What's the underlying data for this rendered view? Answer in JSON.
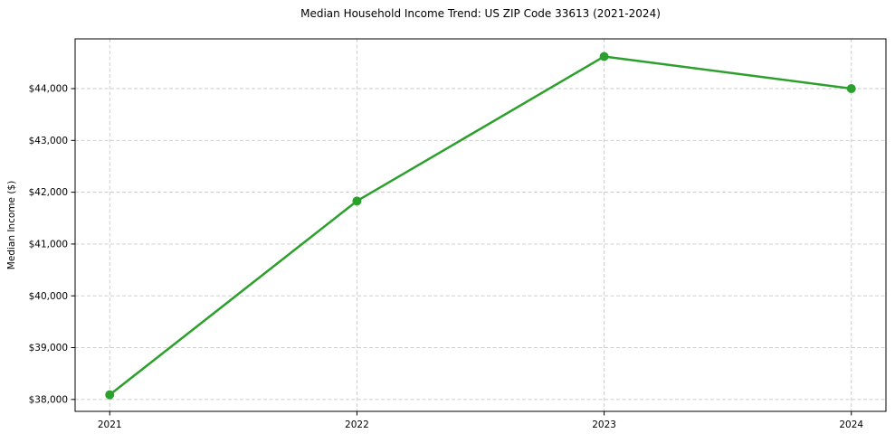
{
  "title": "Median Household Income Trend: US ZIP Code 33613 (2021-2024)",
  "chart_data": {
    "type": "line",
    "title": "Median Household Income Trend: US ZIP Code 33613 (2021-2024)",
    "xlabel": "",
    "ylabel": "Median Income ($)",
    "x": [
      2021,
      2022,
      2023,
      2024
    ],
    "series": [
      {
        "name": "Median Income",
        "color": "#2ca02c",
        "values": [
          38090,
          41830,
          44620,
          44000
        ]
      }
    ],
    "xticks": [
      2021,
      2022,
      2023,
      2024
    ],
    "xtick_labels": [
      "2021",
      "2022",
      "2023",
      "2024"
    ],
    "yticks": [
      38000,
      39000,
      40000,
      41000,
      42000,
      43000,
      44000
    ],
    "ytick_labels": [
      "$38,000",
      "$39,000",
      "$40,000",
      "$41,000",
      "$42,000",
      "$43,000",
      "$44,000"
    ],
    "xlim": [
      2020.86,
      2024.14
    ],
    "ylim": [
      37770,
      44960
    ],
    "grid": true,
    "grid_style": "dashed",
    "legend_position": "none"
  },
  "colors": {
    "line": "#2ca02c",
    "marker": "#2ca02c",
    "grid": "#c8c8c8",
    "spine": "#000000",
    "text": "#000000",
    "background": "#ffffff"
  }
}
